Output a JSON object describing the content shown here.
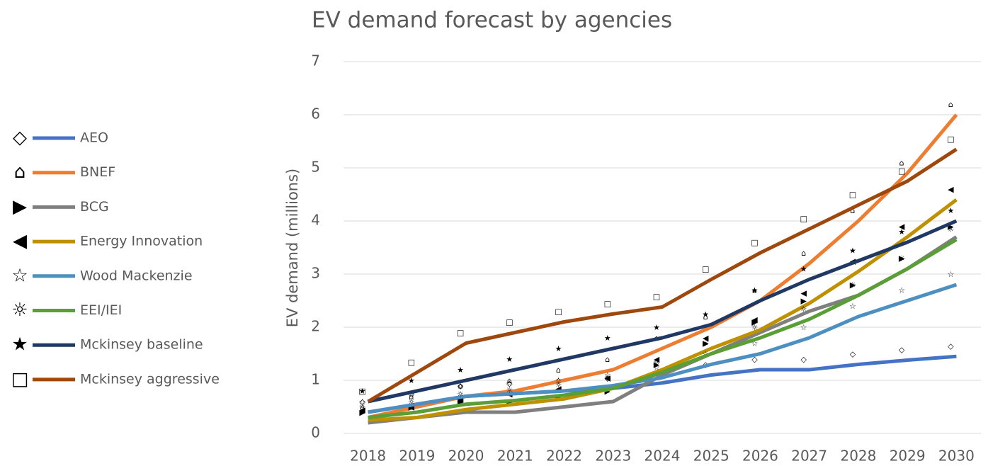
{
  "chart_data": {
    "type": "line",
    "title": "EV demand forecast by agencies",
    "y_label": "EV demand (millions)",
    "categories": [
      "2018",
      "2019",
      "2020",
      "2021",
      "2022",
      "2023",
      "2024",
      "2025",
      "2026",
      "2027",
      "2028",
      "2029",
      "2030"
    ],
    "ylim": [
      0,
      7
    ],
    "yticks": [
      0,
      1,
      2,
      3,
      4,
      5,
      6,
      7
    ],
    "grid": true,
    "legend": "left",
    "series": [
      {
        "name": "AEO",
        "color": "#4472c4",
        "marker": "◇",
        "values": [
          0.4,
          0.55,
          0.7,
          0.75,
          0.8,
          0.85,
          0.95,
          1.1,
          1.2,
          1.2,
          1.3,
          1.38,
          1.45
        ]
      },
      {
        "name": "BNEF",
        "color": "#ed7d31",
        "marker": "⌂",
        "values": [
          0.3,
          0.5,
          0.7,
          0.8,
          1.0,
          1.2,
          1.6,
          2.0,
          2.5,
          3.2,
          4.0,
          4.9,
          6.0
        ]
      },
      {
        "name": "BCG",
        "color": "#7f7f7f",
        "marker": "▶",
        "values": [
          0.2,
          0.3,
          0.4,
          0.4,
          0.5,
          0.6,
          1.1,
          1.5,
          1.9,
          2.3,
          2.6,
          3.1,
          3.7
        ]
      },
      {
        "name": "Energy Innovation",
        "color": "#bf9000",
        "marker": "◀",
        "values": [
          0.25,
          0.3,
          0.45,
          0.55,
          0.65,
          0.85,
          1.2,
          1.6,
          1.95,
          2.45,
          3.05,
          3.7,
          4.4
        ]
      },
      {
        "name": "Wood Mackenzie",
        "color": "#4e8fc2",
        "marker": "☆",
        "values": [
          0.4,
          0.55,
          0.7,
          0.75,
          0.8,
          0.9,
          1.05,
          1.3,
          1.5,
          1.8,
          2.2,
          2.5,
          2.8
        ]
      },
      {
        "name": "EEI/IEI",
        "color": "#5a9e36",
        "marker": "☼",
        "values": [
          0.3,
          0.4,
          0.55,
          0.62,
          0.72,
          0.85,
          1.15,
          1.5,
          1.8,
          2.15,
          2.6,
          3.1,
          3.65
        ]
      },
      {
        "name": "Mckinsey baseline",
        "color": "#203864",
        "marker": "★",
        "values": [
          0.6,
          0.8,
          1.0,
          1.2,
          1.4,
          1.6,
          1.8,
          2.05,
          2.5,
          2.9,
          3.25,
          3.6,
          4.0
        ]
      },
      {
        "name": "Mckinsey aggressive",
        "color": "#9e480e",
        "marker": "□",
        "values": [
          0.6,
          1.15,
          1.7,
          1.9,
          2.1,
          2.25,
          2.38,
          2.9,
          3.4,
          3.85,
          4.3,
          4.75,
          5.35
        ]
      }
    ]
  }
}
